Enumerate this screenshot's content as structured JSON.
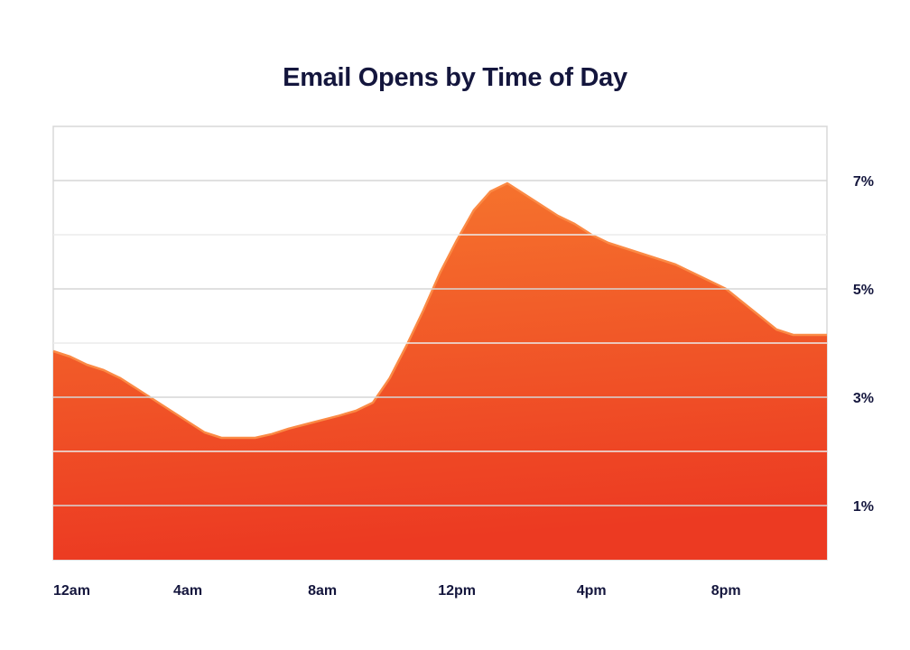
{
  "chart_data": {
    "type": "area",
    "title": "Email Opens by Time of Day",
    "xlabel": "",
    "ylabel": "",
    "x": [
      0,
      0.5,
      1,
      1.5,
      2,
      2.5,
      3,
      3.5,
      4,
      4.5,
      5,
      5.5,
      6,
      6.5,
      7,
      7.5,
      8,
      8.5,
      9,
      9.5,
      10,
      10.5,
      11,
      11.5,
      12,
      12.5,
      13,
      13.5,
      14,
      14.5,
      15,
      15.5,
      16,
      16.5,
      17,
      17.5,
      18,
      18.5,
      19,
      19.5,
      20,
      20.5,
      21,
      21.5,
      22,
      22.5,
      23
    ],
    "series": [
      {
        "values": [
          3.85,
          3.75,
          3.6,
          3.5,
          3.35,
          3.15,
          2.95,
          2.75,
          2.55,
          2.35,
          2.25,
          2.25,
          2.25,
          2.32,
          2.42,
          2.5,
          2.58,
          2.66,
          2.75,
          2.9,
          3.35,
          3.95,
          4.6,
          5.3,
          5.9,
          6.45,
          6.8,
          6.95,
          6.75,
          6.55,
          6.35,
          6.2,
          6.0,
          5.85,
          5.75,
          5.65,
          5.55,
          5.45,
          5.3,
          5.15,
          5.0,
          4.75,
          4.5,
          4.25,
          4.15,
          4.15,
          4.15
        ]
      }
    ],
    "x_ticks": [
      {
        "value": 0,
        "label": "12am"
      },
      {
        "value": 4,
        "label": "4am"
      },
      {
        "value": 8,
        "label": "8am"
      },
      {
        "value": 12,
        "label": "12pm"
      },
      {
        "value": 16,
        "label": "4pm"
      },
      {
        "value": 20,
        "label": "8pm"
      }
    ],
    "y_ticks": [
      {
        "value": 1,
        "label": "1%"
      },
      {
        "value": 3,
        "label": "3%"
      },
      {
        "value": 5,
        "label": "5%"
      },
      {
        "value": 7,
        "label": "7%"
      }
    ],
    "xlim": [
      0,
      23
    ],
    "ylim": [
      0,
      8
    ],
    "y_axis_side": "right",
    "grid": true,
    "colors": {
      "fill_top": "#f6772e",
      "fill_bottom": "#ec3a22",
      "outline": "#fb8a45",
      "grid": "#d6d6d6",
      "frame": "#d8d8d8",
      "text": "#14163d"
    }
  }
}
